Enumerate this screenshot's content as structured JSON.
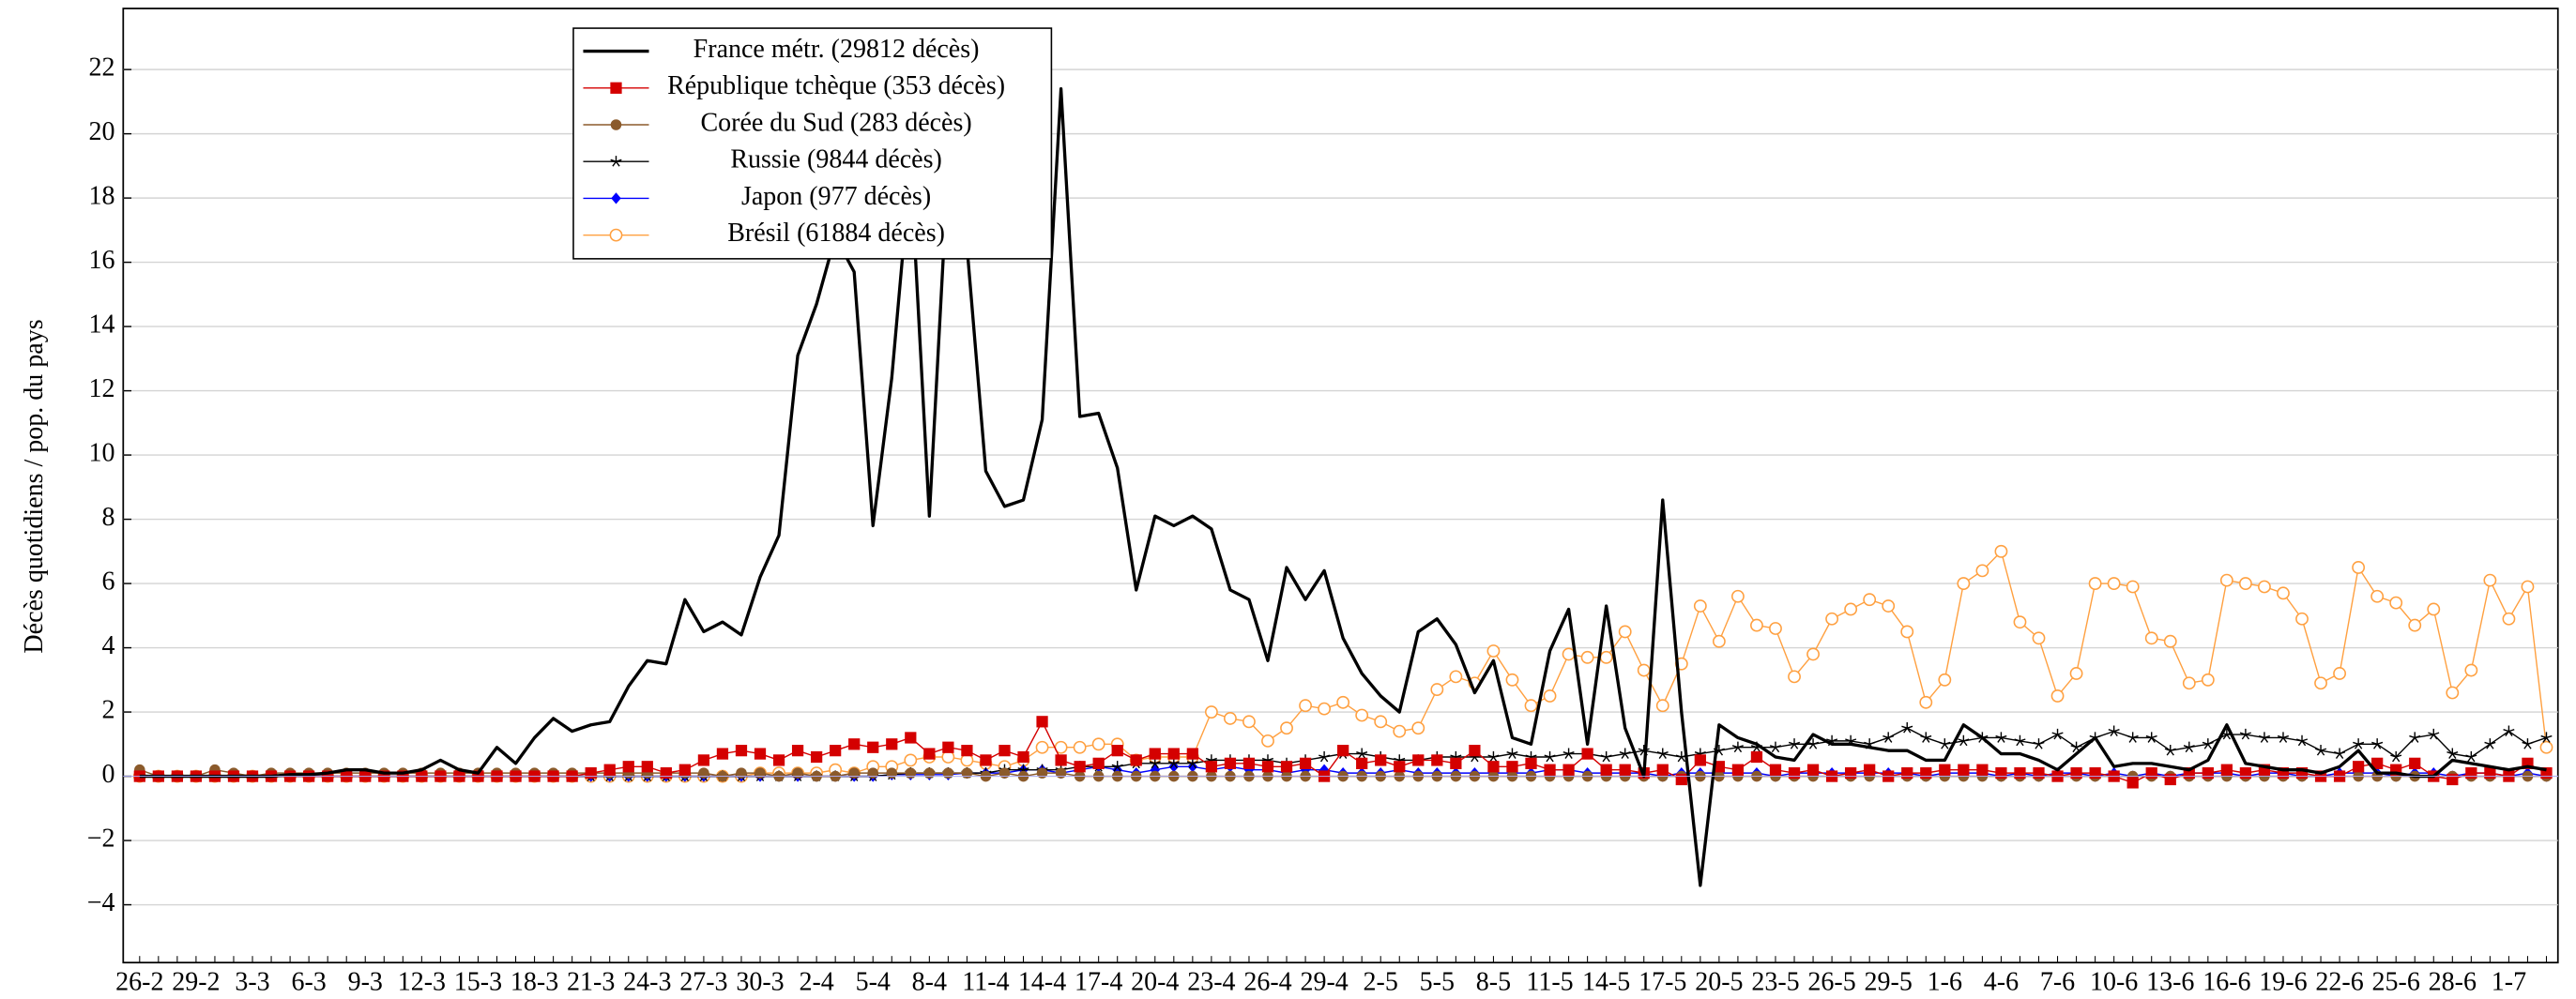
{
  "chart_data": {
    "type": "line",
    "y_label": "Décès quotidiens / pop. du pays",
    "categories": [
      "26-2",
      null,
      null,
      "29-2",
      null,
      null,
      "3-3",
      null,
      null,
      "6-3",
      null,
      null,
      "9-3",
      null,
      null,
      "12-3",
      null,
      null,
      "15-3",
      null,
      null,
      "18-3",
      null,
      null,
      "21-3",
      null,
      null,
      "24-3",
      null,
      null,
      "27-3",
      null,
      null,
      "30-3",
      null,
      null,
      "2-4",
      null,
      null,
      "5-4",
      null,
      null,
      "8-4",
      null,
      null,
      "11-4",
      null,
      null,
      "14-4",
      null,
      null,
      "17-4",
      null,
      null,
      "20-4",
      null,
      null,
      "23-4",
      null,
      null,
      "26-4",
      null,
      null,
      "29-4",
      null,
      null,
      "2-5",
      null,
      null,
      "5-5",
      null,
      null,
      "8-5",
      null,
      null,
      "11-5",
      null,
      null,
      "14-5",
      null,
      null,
      "17-5",
      null,
      null,
      "20-5",
      null,
      null,
      "23-5",
      null,
      null,
      "26-5",
      null,
      null,
      "29-5",
      null,
      null,
      "1-6",
      null,
      null,
      "4-6",
      null,
      null,
      "7-6",
      null,
      null,
      "10-6",
      null,
      null,
      "13-6",
      null,
      null,
      "16-6",
      null,
      null,
      "19-6",
      null,
      null,
      "22-6",
      null,
      null,
      "25-6",
      null,
      null,
      "28-6",
      null,
      null,
      "1-7",
      null,
      null
    ],
    "ylim": [
      -5.8,
      23.9
    ],
    "yticks": [
      {
        "value": -4,
        "label": "−4"
      },
      {
        "value": -2,
        "label": "−2"
      },
      0,
      2,
      4,
      6,
      8,
      10,
      12,
      14,
      16,
      18,
      20,
      22
    ],
    "grid": true,
    "legend": "upper left",
    "series": [
      {
        "name": "France métr. (29812 décès)",
        "color": "#000000",
        "marker": "none",
        "values": [
          0,
          0,
          0,
          0,
          0,
          0,
          0,
          0,
          0.05,
          0.05,
          0.1,
          0.2,
          0.2,
          0.1,
          0.1,
          0.2,
          0.5,
          0.2,
          0.1,
          0.9,
          0.4,
          1.2,
          1.8,
          1.4,
          1.6,
          1.7,
          2.8,
          3.6,
          3.5,
          5.5,
          4.5,
          4.8,
          4.4,
          6.2,
          7.5,
          13.1,
          14.7,
          16.8,
          15.7,
          7.8,
          12.4,
          19,
          8.1,
          19,
          16.5,
          9.5,
          8.4,
          8.6,
          11.1,
          21.4,
          11.2,
          11.3,
          9.6,
          5.8,
          8.1,
          7.8,
          8.1,
          7.7,
          5.8,
          5.5,
          3.6,
          6.5,
          5.5,
          6.4,
          4.3,
          3.2,
          2.5,
          2.0,
          4.5,
          4.9,
          4.1,
          2.6,
          3.6,
          1.2,
          1.0,
          3.9,
          5.2,
          1.0,
          5.3,
          1.5,
          0,
          8.6,
          2.0,
          -3.4,
          1.6,
          1.2,
          1.0,
          0.6,
          0.5,
          1.3,
          1.0,
          1.0,
          0.9,
          0.8,
          0.8,
          0.5,
          0.5,
          1.6,
          1.2,
          0.7,
          0.7,
          0.5,
          0.2,
          0.7,
          1.2,
          0.3,
          0.4,
          0.4,
          0.3,
          0.2,
          0.5,
          1.6,
          0.4,
          0.3,
          0.2,
          0.2,
          0.1,
          0.3,
          0.8,
          0.1,
          0.1,
          0.0,
          0.0,
          0.5,
          0.4,
          0.3,
          0.2,
          0.3,
          0.2
        ]
      },
      {
        "name": "République tchèque (353 décès)",
        "color": "#d40000",
        "marker": "square",
        "values": [
          0,
          0,
          0,
          0,
          0,
          0,
          0,
          0,
          0,
          0,
          0,
          0,
          0,
          0,
          0,
          0,
          0,
          0,
          0,
          0,
          0,
          0,
          0,
          0,
          0.1,
          0.2,
          0.3,
          0.3,
          0.1,
          0.2,
          0.5,
          0.7,
          0.8,
          0.7,
          0.5,
          0.8,
          0.6,
          0.8,
          1.0,
          0.9,
          1.0,
          1.2,
          0.7,
          0.9,
          0.8,
          0.5,
          0.8,
          0.6,
          1.7,
          0.5,
          0.3,
          0.4,
          0.8,
          0.5,
          0.7,
          0.7,
          0.7,
          0.3,
          0.4,
          0.4,
          0.3,
          0.3,
          0.4,
          0,
          0.8,
          0.4,
          0.5,
          0.3,
          0.5,
          0.5,
          0.4,
          0.8,
          0.3,
          0.3,
          0.4,
          0.2,
          0.2,
          0.7,
          0.2,
          0.2,
          0.1,
          0.2,
          -0.1,
          0.5,
          0.3,
          0.2,
          0.6,
          0.2,
          0.1,
          0.2,
          0,
          0.1,
          0.2,
          0,
          0.1,
          0.1,
          0.2,
          0.2,
          0.2,
          0.1,
          0.1,
          0.1,
          0,
          0.1,
          0.1,
          0,
          -0.2,
          0.1,
          -0.1,
          0.1,
          0.1,
          0.2,
          0.1,
          0.2,
          0.1,
          0.1,
          0,
          0,
          0.3,
          0.4,
          0.2,
          0.4,
          0,
          -0.1,
          0.1,
          0.1,
          0,
          0.4,
          0.1
        ]
      },
      {
        "name": "Corée du Sud (283 décès)",
        "color": "#8b5a2b",
        "marker": "circle",
        "values": [
          0.2,
          0,
          0,
          0,
          0.2,
          0.1,
          0,
          0.1,
          0.1,
          0.1,
          0.1,
          0.1,
          0.1,
          0.1,
          0.1,
          0.1,
          0.1,
          0.1,
          0.1,
          0.1,
          0.1,
          0.1,
          0.1,
          0.1,
          0.1,
          0.1,
          0.1,
          0.1,
          0.1,
          0.1,
          0.1,
          0,
          0.1,
          0.1,
          0,
          0.1,
          0,
          0,
          0.1,
          0.1,
          0.1,
          0.1,
          0.1,
          0.1,
          0.1,
          0,
          0.1,
          0,
          0.1,
          0.1,
          0,
          0,
          0,
          0,
          0,
          0,
          0,
          0,
          0,
          0,
          0,
          0,
          0,
          0,
          0,
          0,
          0,
          0,
          0,
          0,
          0,
          0,
          0,
          0,
          0,
          0,
          0,
          0,
          0,
          0,
          0,
          0,
          0,
          0,
          0,
          0,
          0,
          0,
          0,
          0,
          0,
          0,
          0,
          0,
          0,
          0,
          0,
          0,
          0,
          0,
          0,
          0,
          0,
          0,
          0,
          0,
          0,
          0,
          0,
          0,
          0,
          0,
          0,
          0,
          0,
          0,
          0,
          0,
          0,
          0,
          0,
          0,
          0,
          0,
          0,
          0,
          0,
          0,
          0
        ]
      },
      {
        "name": "Russie (9844 décès)",
        "color": "#000000",
        "marker": "star",
        "values": [
          0,
          0,
          0,
          0,
          0,
          0,
          0,
          0,
          0,
          0,
          0,
          0,
          0,
          0,
          0,
          0,
          0,
          0,
          0,
          0,
          0,
          0,
          0,
          0,
          0,
          0,
          0,
          0,
          0,
          0,
          0,
          0,
          0,
          0,
          0,
          0,
          0,
          0,
          0,
          0,
          0.05,
          0.1,
          0.1,
          0.1,
          0.1,
          0.1,
          0.2,
          0.2,
          0.2,
          0.2,
          0.3,
          0.3,
          0.3,
          0.4,
          0.4,
          0.4,
          0.4,
          0.5,
          0.5,
          0.5,
          0.5,
          0.4,
          0.5,
          0.6,
          0.7,
          0.7,
          0.6,
          0.5,
          0.5,
          0.6,
          0.6,
          0.6,
          0.6,
          0.7,
          0.6,
          0.6,
          0.7,
          0.7,
          0.6,
          0.7,
          0.8,
          0.7,
          0.6,
          0.7,
          0.8,
          0.9,
          0.9,
          0.9,
          1.0,
          1.0,
          1.1,
          1.1,
          1.0,
          1.2,
          1.5,
          1.2,
          1.0,
          1.1,
          1.2,
          1.2,
          1.1,
          1.0,
          1.3,
          0.9,
          1.2,
          1.4,
          1.2,
          1.2,
          0.8,
          0.9,
          1.0,
          1.3,
          1.3,
          1.2,
          1.2,
          1.1,
          0.8,
          0.7,
          1.0,
          1.0,
          0.6,
          1.2,
          1.3,
          0.7,
          0.6,
          1.0,
          1.4,
          1.0,
          1.2
        ]
      },
      {
        "name": "Japon (977 décès)",
        "color": "#0000ff",
        "marker": "diamond",
        "values": [
          0,
          0,
          0,
          0,
          0,
          0,
          0,
          0,
          0,
          0,
          0,
          0,
          0,
          0,
          0,
          0,
          0,
          0,
          0,
          0,
          0,
          0,
          0,
          0,
          0,
          0,
          0,
          0,
          0,
          0,
          0,
          0,
          0,
          0,
          0,
          0,
          0,
          0,
          0,
          0,
          0.05,
          0.05,
          0.05,
          0.05,
          0.1,
          0.1,
          0.1,
          0.2,
          0.2,
          0.1,
          0.2,
          0.3,
          0.2,
          0.1,
          0.2,
          0.3,
          0.3,
          0.2,
          0.3,
          0.2,
          0.2,
          0.1,
          0.2,
          0.2,
          0.1,
          0.1,
          0.1,
          0.2,
          0.1,
          0.1,
          0.1,
          0.1,
          0.1,
          0.1,
          0.1,
          0.2,
          0.2,
          0.1,
          0.1,
          0.1,
          0.1,
          0,
          0.1,
          0.1,
          0.1,
          0.1,
          0.1,
          0,
          0.1,
          0.1,
          0.1,
          0.1,
          0.1,
          0.1,
          0.1,
          0,
          0.1,
          0.1,
          0.1,
          0,
          0.1,
          0,
          0.1,
          0.1,
          0,
          0.1,
          0,
          0.1,
          0,
          0.1,
          0.1,
          0.1,
          0,
          0.1,
          0.1,
          0,
          0,
          0.1,
          0.1,
          0.1,
          0,
          0.1,
          0.1,
          0,
          0.1,
          0.1,
          0,
          0.1,
          0
        ]
      },
      {
        "name": "Brésil (61884 décès)",
        "color": "#ffa040",
        "marker": "open-circle",
        "values": [
          0,
          0,
          0,
          0,
          0,
          0,
          0,
          0,
          0,
          0,
          0,
          0,
          0,
          0,
          0,
          0,
          0,
          0,
          0,
          0,
          0,
          0,
          0,
          0,
          0,
          0,
          0,
          0,
          0,
          0,
          0,
          0,
          0,
          0.1,
          0.1,
          0.1,
          0.1,
          0.2,
          0.1,
          0.3,
          0.3,
          0.5,
          0.6,
          0.6,
          0.5,
          0.4,
          0.3,
          0.5,
          0.9,
          0.9,
          0.9,
          1.0,
          1.0,
          0.5,
          0.6,
          0.6,
          0.6,
          2.0,
          1.8,
          1.7,
          1.1,
          1.5,
          2.2,
          2.1,
          2.3,
          1.9,
          1.7,
          1.4,
          1.5,
          2.7,
          3.1,
          2.9,
          3.9,
          3.0,
          2.2,
          2.5,
          3.8,
          3.7,
          3.7,
          4.5,
          3.3,
          2.2,
          3.5,
          5.3,
          4.2,
          5.6,
          4.7,
          4.6,
          3.1,
          3.8,
          4.9,
          5.2,
          5.5,
          5.3,
          4.5,
          2.3,
          3.0,
          6.0,
          6.4,
          7.0,
          4.8,
          4.3,
          2.5,
          3.2,
          6.0,
          6.0,
          5.9,
          4.3,
          4.2,
          2.9,
          3.0,
          6.1,
          6.0,
          5.9,
          5.7,
          4.9,
          2.9,
          3.2,
          6.5,
          5.6,
          5.4,
          4.7,
          5.2,
          2.6,
          3.3,
          6.1,
          4.9,
          5.9,
          0.9
        ]
      }
    ]
  }
}
